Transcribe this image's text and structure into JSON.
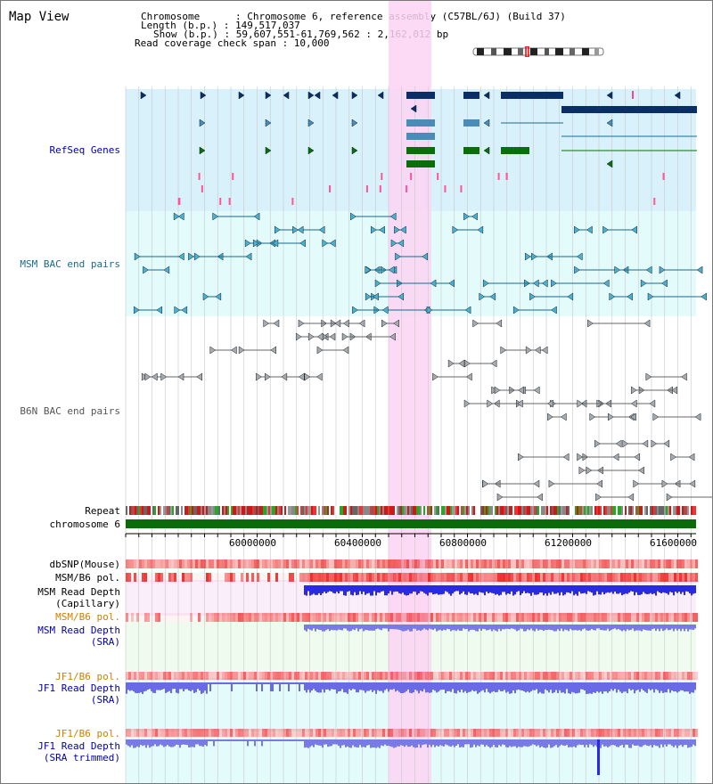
{
  "view_title": "Map View",
  "header": {
    "chromosome": "Chromosome      : Chromosome 6, reference assembly (C57BL/6J) (Build 37)",
    "length": "Length (b.p.) : 149,517,037",
    "show": "Show (b.p.) : 59,607,551-61,769,562 : 2,162,012 bp",
    "coverage": "Read coverage check span : 10,000"
  },
  "tracks": {
    "refseq": "RefSeq Genes",
    "msm_bac": "MSM BAC end pairs",
    "b6n_bac": "B6N BAC end pairs",
    "repeat": "Repeat",
    "chromosome": "chromosome 6",
    "dbsnp": "dbSNP(Mouse)",
    "msm_b6_pol_1": "MSM/B6 pol.",
    "msm_read_depth_cap_1": "MSM Read Depth",
    "msm_read_depth_cap_2": "(Capillary)",
    "msm_b6_pol_2": "MSM/B6 pol.",
    "msm_read_depth_sra_1": "MSM Read Depth",
    "msm_read_depth_sra_2": "(SRA)",
    "jf1_b6_pol_1": "JF1/B6 pol.",
    "jf1_read_depth_sra_1": "JF1 Read Depth",
    "jf1_read_depth_sra_2": "(SRA)",
    "jf1_b6_pol_2": "JF1/B6 pol.",
    "jf1_read_depth_trim_1": "JF1 Read Depth",
    "jf1_read_depth_trim_2": "(SRA trimmed)"
  },
  "axis": {
    "ticks": [
      "60000000",
      "60400000",
      "60800000",
      "61200000",
      "61600000"
    ]
  },
  "colors": {
    "refseq_bg": "#d9f1fb",
    "msm_bg": "#e3fbfb",
    "highlight": "#fbd3f3",
    "gene_navy": "#0b2e66",
    "gene_steel": "#4a8cb8",
    "gene_green": "#0a6e0a",
    "msm_pair": "#1a6a8a",
    "b6n_pair": "#666666",
    "chromosome_bar": "#0b6b0b",
    "label_blue": "#0000aa",
    "label_orange": "#d08000",
    "depth_blue": "#2a2ae6",
    "depth_light": "#7a7ae6"
  }
}
